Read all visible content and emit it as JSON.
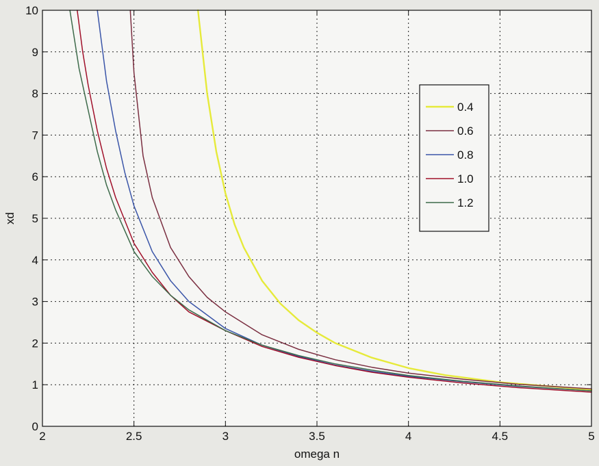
{
  "chart_data": {
    "type": "line",
    "xlabel": "omega n",
    "ylabel": "xd",
    "xlim": [
      2,
      5
    ],
    "ylim": [
      0,
      10
    ],
    "xticks": [
      2,
      2.5,
      3,
      3.5,
      4,
      4.5,
      5
    ],
    "xtick_labels": [
      "2",
      "2.5",
      "3",
      "3.5",
      "4",
      "4.5",
      "5"
    ],
    "yticks": [
      0,
      1,
      2,
      3,
      4,
      5,
      6,
      7,
      8,
      9,
      10
    ],
    "ytick_labels": [
      "0",
      "1",
      "2",
      "3",
      "4",
      "5",
      "6",
      "7",
      "8",
      "9",
      "10"
    ],
    "grid": true,
    "legend_position": "upper-right",
    "series": [
      {
        "name": "0.4",
        "color": "#e6ea3a",
        "x": [
          2.85,
          2.9,
          2.95,
          3.0,
          3.05,
          3.1,
          3.2,
          3.3,
          3.4,
          3.5,
          3.6,
          3.8,
          4.0,
          4.2,
          4.5,
          4.8,
          5.0
        ],
        "y": [
          10.0,
          8.0,
          6.6,
          5.6,
          4.85,
          4.3,
          3.5,
          2.95,
          2.55,
          2.25,
          2.0,
          1.65,
          1.4,
          1.23,
          1.06,
          0.95,
          0.88
        ]
      },
      {
        "name": "0.6",
        "color": "#7a2e40",
        "x": [
          2.48,
          2.5,
          2.55,
          2.6,
          2.7,
          2.8,
          2.9,
          3.0,
          3.2,
          3.4,
          3.6,
          3.8,
          4.0,
          4.3,
          4.6,
          5.0
        ],
        "y": [
          10.0,
          8.5,
          6.5,
          5.5,
          4.3,
          3.6,
          3.1,
          2.75,
          2.2,
          1.85,
          1.6,
          1.42,
          1.28,
          1.13,
          1.01,
          0.9
        ]
      },
      {
        "name": "0.8",
        "color": "#3a55a8",
        "x": [
          2.3,
          2.35,
          2.4,
          2.45,
          2.5,
          2.6,
          2.7,
          2.8,
          3.0,
          3.2,
          3.4,
          3.6,
          3.8,
          4.0,
          4.3,
          4.6,
          5.0
        ],
        "y": [
          10.0,
          8.3,
          7.1,
          6.1,
          5.3,
          4.2,
          3.5,
          3.0,
          2.35,
          1.95,
          1.68,
          1.47,
          1.32,
          1.2,
          1.07,
          0.96,
          0.85
        ]
      },
      {
        "name": "1.0",
        "color": "#a0102a",
        "x": [
          2.19,
          2.22,
          2.25,
          2.3,
          2.35,
          2.4,
          2.5,
          2.6,
          2.7,
          2.8,
          3.0,
          3.2,
          3.4,
          3.6,
          3.8,
          4.0,
          4.3,
          4.6,
          5.0
        ],
        "y": [
          10.0,
          9.0,
          8.2,
          7.1,
          6.2,
          5.5,
          4.4,
          3.7,
          3.15,
          2.75,
          2.3,
          1.92,
          1.66,
          1.46,
          1.3,
          1.18,
          1.04,
          0.93,
          0.82
        ]
      },
      {
        "name": "1.2",
        "color": "#3d6a4a",
        "x": [
          2.15,
          2.2,
          2.25,
          2.3,
          2.35,
          2.4,
          2.5,
          2.6,
          2.7,
          2.8,
          3.0,
          3.2,
          3.4,
          3.6,
          3.8,
          4.0,
          4.3,
          4.6,
          5.0
        ],
        "y": [
          10.0,
          8.6,
          7.6,
          6.6,
          5.8,
          5.2,
          4.2,
          3.6,
          3.15,
          2.8,
          2.3,
          1.95,
          1.7,
          1.5,
          1.35,
          1.22,
          1.08,
          0.97,
          0.85
        ]
      }
    ]
  }
}
